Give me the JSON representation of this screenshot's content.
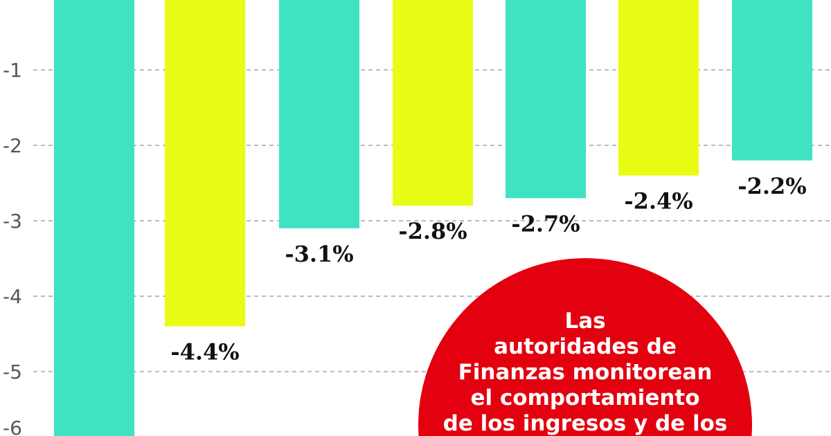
{
  "chart_data": {
    "type": "bar",
    "title": "",
    "xlabel": "",
    "ylabel": "",
    "ylim": [
      -6.2,
      0
    ],
    "yticks": [
      -1,
      -2,
      -3,
      -4,
      -5,
      -6
    ],
    "ytick_labels": [
      "-1",
      "-2",
      "-3",
      "-4",
      "-5",
      "-6"
    ],
    "grid": "dashed horizontal",
    "values": [
      null,
      -4.4,
      -3.1,
      -2.8,
      -2.7,
      -2.4,
      -2.2
    ],
    "data_labels": [
      "",
      "-4.4%",
      "-3.1%",
      "-2.8%",
      "-2.7%",
      "-2.4%",
      "-2.2%"
    ],
    "bar_colors": [
      "#3fe3c1",
      "#e8fc14",
      "#3fe3c1",
      "#e8fc14",
      "#3fe3c1",
      "#e8fc14",
      "#3fe3c1"
    ]
  },
  "callout": {
    "color": "#e3000f",
    "lines": [
      "Las",
      "autoridades de",
      "Finanzas monitorean",
      "el comportamiento",
      "de los ingresos y de los"
    ]
  }
}
